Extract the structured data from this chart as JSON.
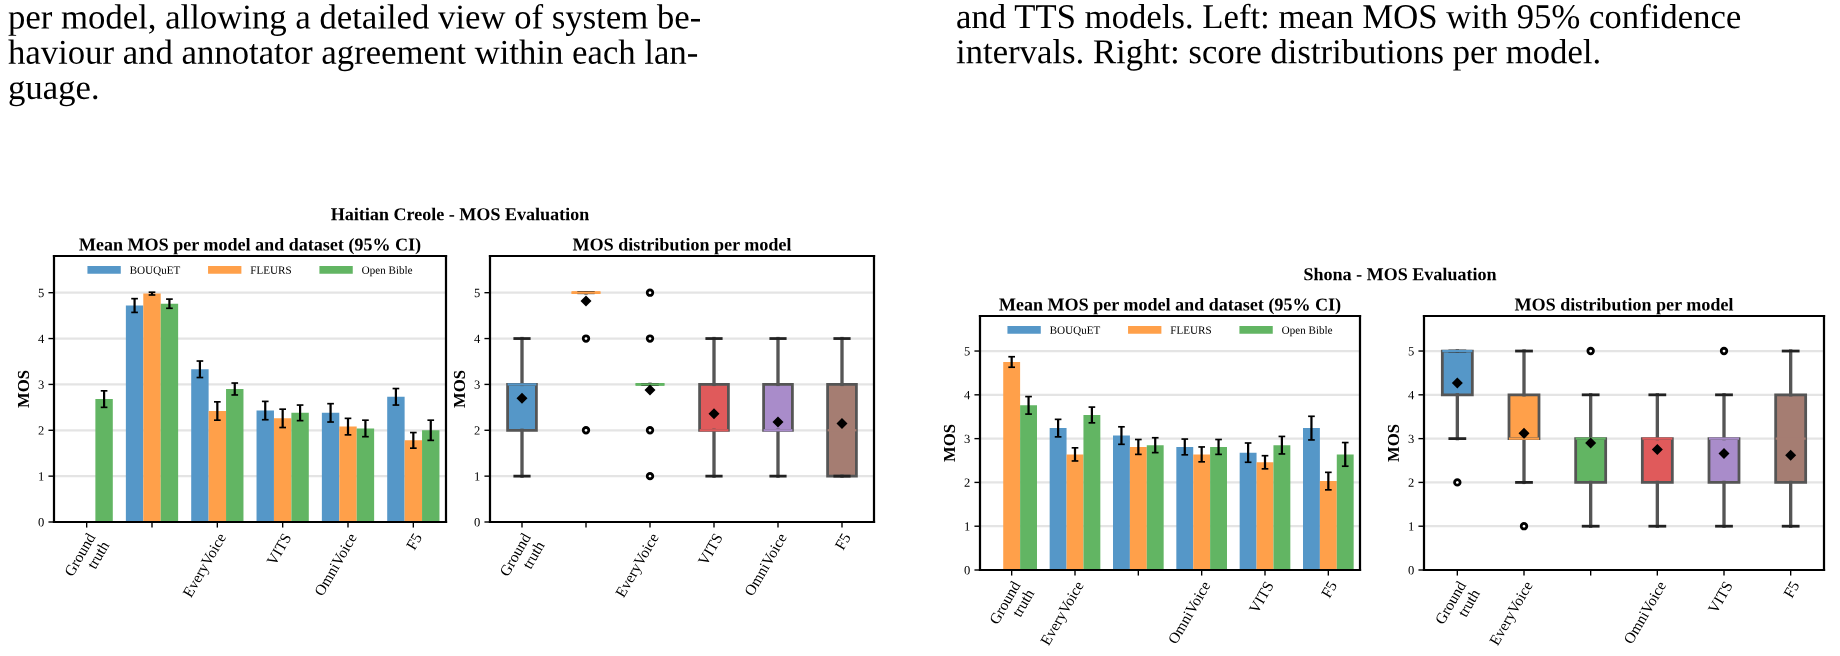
{
  "chart_data": [
    {
      "type": "bar",
      "title": "Mean MOS per model and dataset (95% CI)",
      "ylabel": "MOS",
      "annotations": [
        "Haitian Creole - MOS Evaluation",
        "per model, allowing a detailed view of system be-\nhaviour and annotator agreement within each lan-\nguage."
      ],
      "categories": [
        "Ground\ntruth",
        null,
        "EveryVoice",
        "VITS",
        "OmniVoice",
        "F5"
      ],
      "ylim": [
        0,
        5.8
      ],
      "yticks": [
        0,
        1,
        2,
        3,
        4,
        5
      ],
      "grid": "y",
      "legend": "top",
      "series": [
        {
          "name": "BOUQuET",
          "color": "#5597c8",
          "values": [
            null,
            4.72,
            3.33,
            2.43,
            2.38,
            2.73
          ],
          "errors": [
            null,
            0.15,
            0.18,
            0.2,
            0.2,
            0.18
          ]
        },
        {
          "name": "FLEURS",
          "color": "#ffa04a",
          "values": [
            null,
            4.98,
            2.42,
            2.26,
            2.08,
            1.78
          ],
          "errors": [
            null,
            0.03,
            0.2,
            0.2,
            0.18,
            0.17
          ]
        },
        {
          "name": "Open Bible",
          "color": "#62b563",
          "values": [
            2.68,
            4.76,
            2.9,
            2.38,
            2.04,
            2.0
          ],
          "errors": [
            0.18,
            0.1,
            0.13,
            0.17,
            0.18,
            0.22
          ]
        }
      ]
    },
    {
      "type": "box",
      "title": "MOS distribution per model",
      "ylabel": "MOS",
      "categories": [
        "Ground\ntruth",
        null,
        "EveryVoice",
        "VITS",
        "OmniVoice",
        "F5"
      ],
      "ylim": [
        0,
        5.8
      ],
      "yticks": [
        0,
        1,
        2,
        3,
        4,
        5
      ],
      "grid": "y",
      "colors": [
        "#5597c8",
        "#ffa04a",
        "#62b563",
        "#e05a5b",
        "#a98cca",
        "#a57d72"
      ],
      "boxes": [
        {
          "low": 1,
          "q1": 2,
          "median": 3,
          "q3": 3,
          "high": 4,
          "mean": 2.7
        },
        {
          "low": 5,
          "q1": 5,
          "median": 5,
          "q3": 5,
          "high": 5,
          "mean": 4.82,
          "outliers": [
            4,
            2
          ]
        },
        {
          "low": 3,
          "q1": 3,
          "median": 3,
          "q3": 3,
          "high": 3,
          "mean": 2.88,
          "outliers": [
            5,
            4,
            2,
            1
          ]
        },
        {
          "low": 1,
          "q1": 2,
          "median": 2,
          "q3": 3,
          "high": 4,
          "mean": 2.36
        },
        {
          "low": 1,
          "q1": 2,
          "median": 2,
          "q3": 3,
          "high": 4,
          "mean": 2.18
        },
        {
          "low": 1,
          "q1": 1,
          "median": 2,
          "q3": 3,
          "high": 4,
          "mean": 2.15
        }
      ]
    },
    {
      "type": "bar",
      "title": "Mean MOS per model and dataset (95% CI)",
      "ylabel": "MOS",
      "annotations": [
        "Shona - MOS Evaluation",
        "and TTS models. Left: mean MOS with 95% confidence\nintervals. Right: score distributions per model."
      ],
      "categories": [
        "Ground\ntruth",
        "EveryVoice",
        null,
        "OmniVoice",
        "VITS",
        "F5"
      ],
      "ylim": [
        0,
        5.8
      ],
      "yticks": [
        0,
        1,
        2,
        3,
        4,
        5
      ],
      "grid": "y",
      "legend": "top",
      "series": [
        {
          "name": "BOUQuET",
          "color": "#5597c8",
          "values": [
            null,
            3.24,
            3.07,
            2.81,
            2.68,
            3.24
          ],
          "errors": [
            null,
            0.2,
            0.2,
            0.18,
            0.22,
            0.27
          ]
        },
        {
          "name": "FLEURS",
          "color": "#ffa04a",
          "values": [
            4.75,
            2.64,
            2.81,
            2.64,
            2.46,
            2.03
          ],
          "errors": [
            0.12,
            0.15,
            0.17,
            0.17,
            0.15,
            0.2
          ]
        },
        {
          "name": "Open Bible",
          "color": "#62b563",
          "values": [
            3.76,
            3.54,
            2.85,
            2.81,
            2.85,
            2.64
          ],
          "errors": [
            0.2,
            0.18,
            0.17,
            0.17,
            0.2,
            0.27
          ]
        }
      ]
    },
    {
      "type": "box",
      "title": "MOS distribution per model",
      "ylabel": "MOS",
      "categories": [
        "Ground\ntruth",
        "EveryVoice",
        null,
        "OmniVoice",
        "VITS",
        "F5"
      ],
      "ylim": [
        0,
        5.8
      ],
      "yticks": [
        0,
        1,
        2,
        3,
        4,
        5
      ],
      "grid": "y",
      "colors": [
        "#5597c8",
        "#ffa04a",
        "#62b563",
        "#e05a5b",
        "#a98cca",
        "#a57d72"
      ],
      "boxes": [
        {
          "low": 3,
          "q1": 4,
          "median": 5,
          "q3": 5,
          "high": 5,
          "mean": 4.27,
          "outliers": [
            2
          ]
        },
        {
          "low": 2,
          "q1": 3,
          "median": 3,
          "q3": 4,
          "high": 5,
          "mean": 3.12,
          "outliers": [
            1
          ]
        },
        {
          "low": 1,
          "q1": 2,
          "median": 3,
          "q3": 3,
          "high": 4,
          "mean": 2.9,
          "outliers": [
            5
          ]
        },
        {
          "low": 1,
          "q1": 2,
          "median": 3,
          "q3": 3,
          "high": 4,
          "mean": 2.75
        },
        {
          "low": 1,
          "q1": 2,
          "median": 3,
          "q3": 3,
          "high": 4,
          "mean": 2.66,
          "outliers": [
            5
          ]
        },
        {
          "low": 1,
          "q1": 2,
          "median": 3,
          "q3": 4,
          "high": 5,
          "mean": 2.62
        }
      ]
    }
  ]
}
